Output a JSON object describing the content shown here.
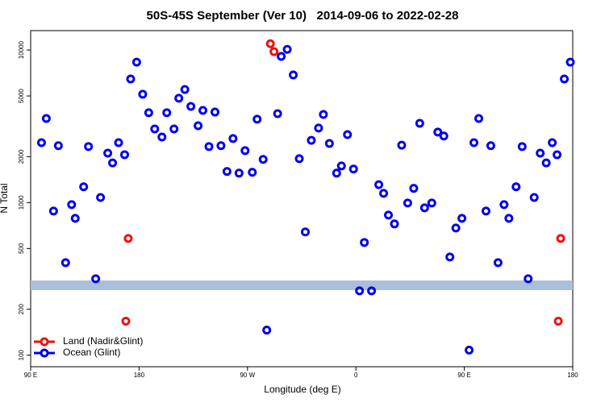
{
  "chart_data": {
    "type": "scatter",
    "title": "50S-45S September (Ver 10)   2014-09-06 to 2022-02-28",
    "xlabel": "Longitude (deg E)",
    "ylabel": "N Total",
    "xlim": [
      90,
      540
    ],
    "xticks": [
      {
        "value": 90,
        "label": "90 E"
      },
      180,
      {
        "value": 270,
        "label": "90 W"
      },
      {
        "value": 360,
        "label": "0"
      },
      {
        "value": 450,
        "label": "90 E"
      },
      {
        "value": 540,
        "label": "180"
      }
    ],
    "ylim": [
      84,
      13400
    ],
    "yscale": "log",
    "yticks": [
      100,
      200,
      500,
      1000,
      2000,
      5000,
      10000
    ],
    "legend": "bottom-left",
    "series": [
      {
        "name": "Land (Nadir&Glint)",
        "color": "#ee1111",
        "x": [
          289,
          292,
          171,
          169,
          530,
          528
        ],
        "values": [
          11000,
          9760,
          582,
          167,
          582,
          167
        ]
      },
      {
        "name": "Ocean (Glint)",
        "color": "#0000ee",
        "x": [
          99,
          103,
          109,
          113,
          119,
          124,
          127,
          134,
          138,
          144,
          148,
          154,
          158,
          163,
          168,
          173,
          178,
          183,
          188,
          193,
          199,
          203,
          209,
          213,
          218,
          223,
          229,
          233,
          238,
          243,
          248,
          253,
          258,
          263,
          268,
          274,
          278,
          283,
          286,
          295,
          298,
          303,
          308,
          313,
          318,
          323,
          329,
          333,
          338,
          344,
          348,
          353,
          358,
          363,
          367,
          373,
          379,
          383,
          387,
          392,
          398,
          403,
          408,
          413,
          417,
          423,
          428,
          433,
          438,
          443,
          448,
          454,
          458,
          462,
          468,
          472,
          478,
          483,
          487,
          493,
          498,
          503,
          508,
          513,
          518,
          523,
          527,
          533,
          538
        ],
        "values": [
          2470,
          3560,
          880,
          2360,
          404,
          970,
          789,
          1270,
          2330,
          317,
          1080,
          2110,
          1820,
          2470,
          2060,
          6460,
          8330,
          5130,
          3880,
          3040,
          2690,
          3880,
          3040,
          4830,
          5510,
          4270,
          3190,
          4020,
          2330,
          3920,
          2360,
          1600,
          2630,
          1560,
          2190,
          1580,
          3520,
          1920,
          146,
          3830,
          9080,
          10100,
          6860,
          1940,
          642,
          2560,
          3080,
          3780,
          2440,
          1560,
          1740,
          2790,
          1660,
          264,
          548,
          264,
          1310,
          1150,
          828,
          725,
          2380,
          994,
          1240,
          3310,
          924,
          994,
          2900,
          2730,
          440,
          682,
          789,
          108,
          2470,
          3560,
          880,
          2360,
          404,
          970,
          789,
          1270,
          2330,
          317,
          1080,
          2110,
          1820,
          2470,
          2060,
          6460,
          8330
        ]
      }
    ]
  }
}
